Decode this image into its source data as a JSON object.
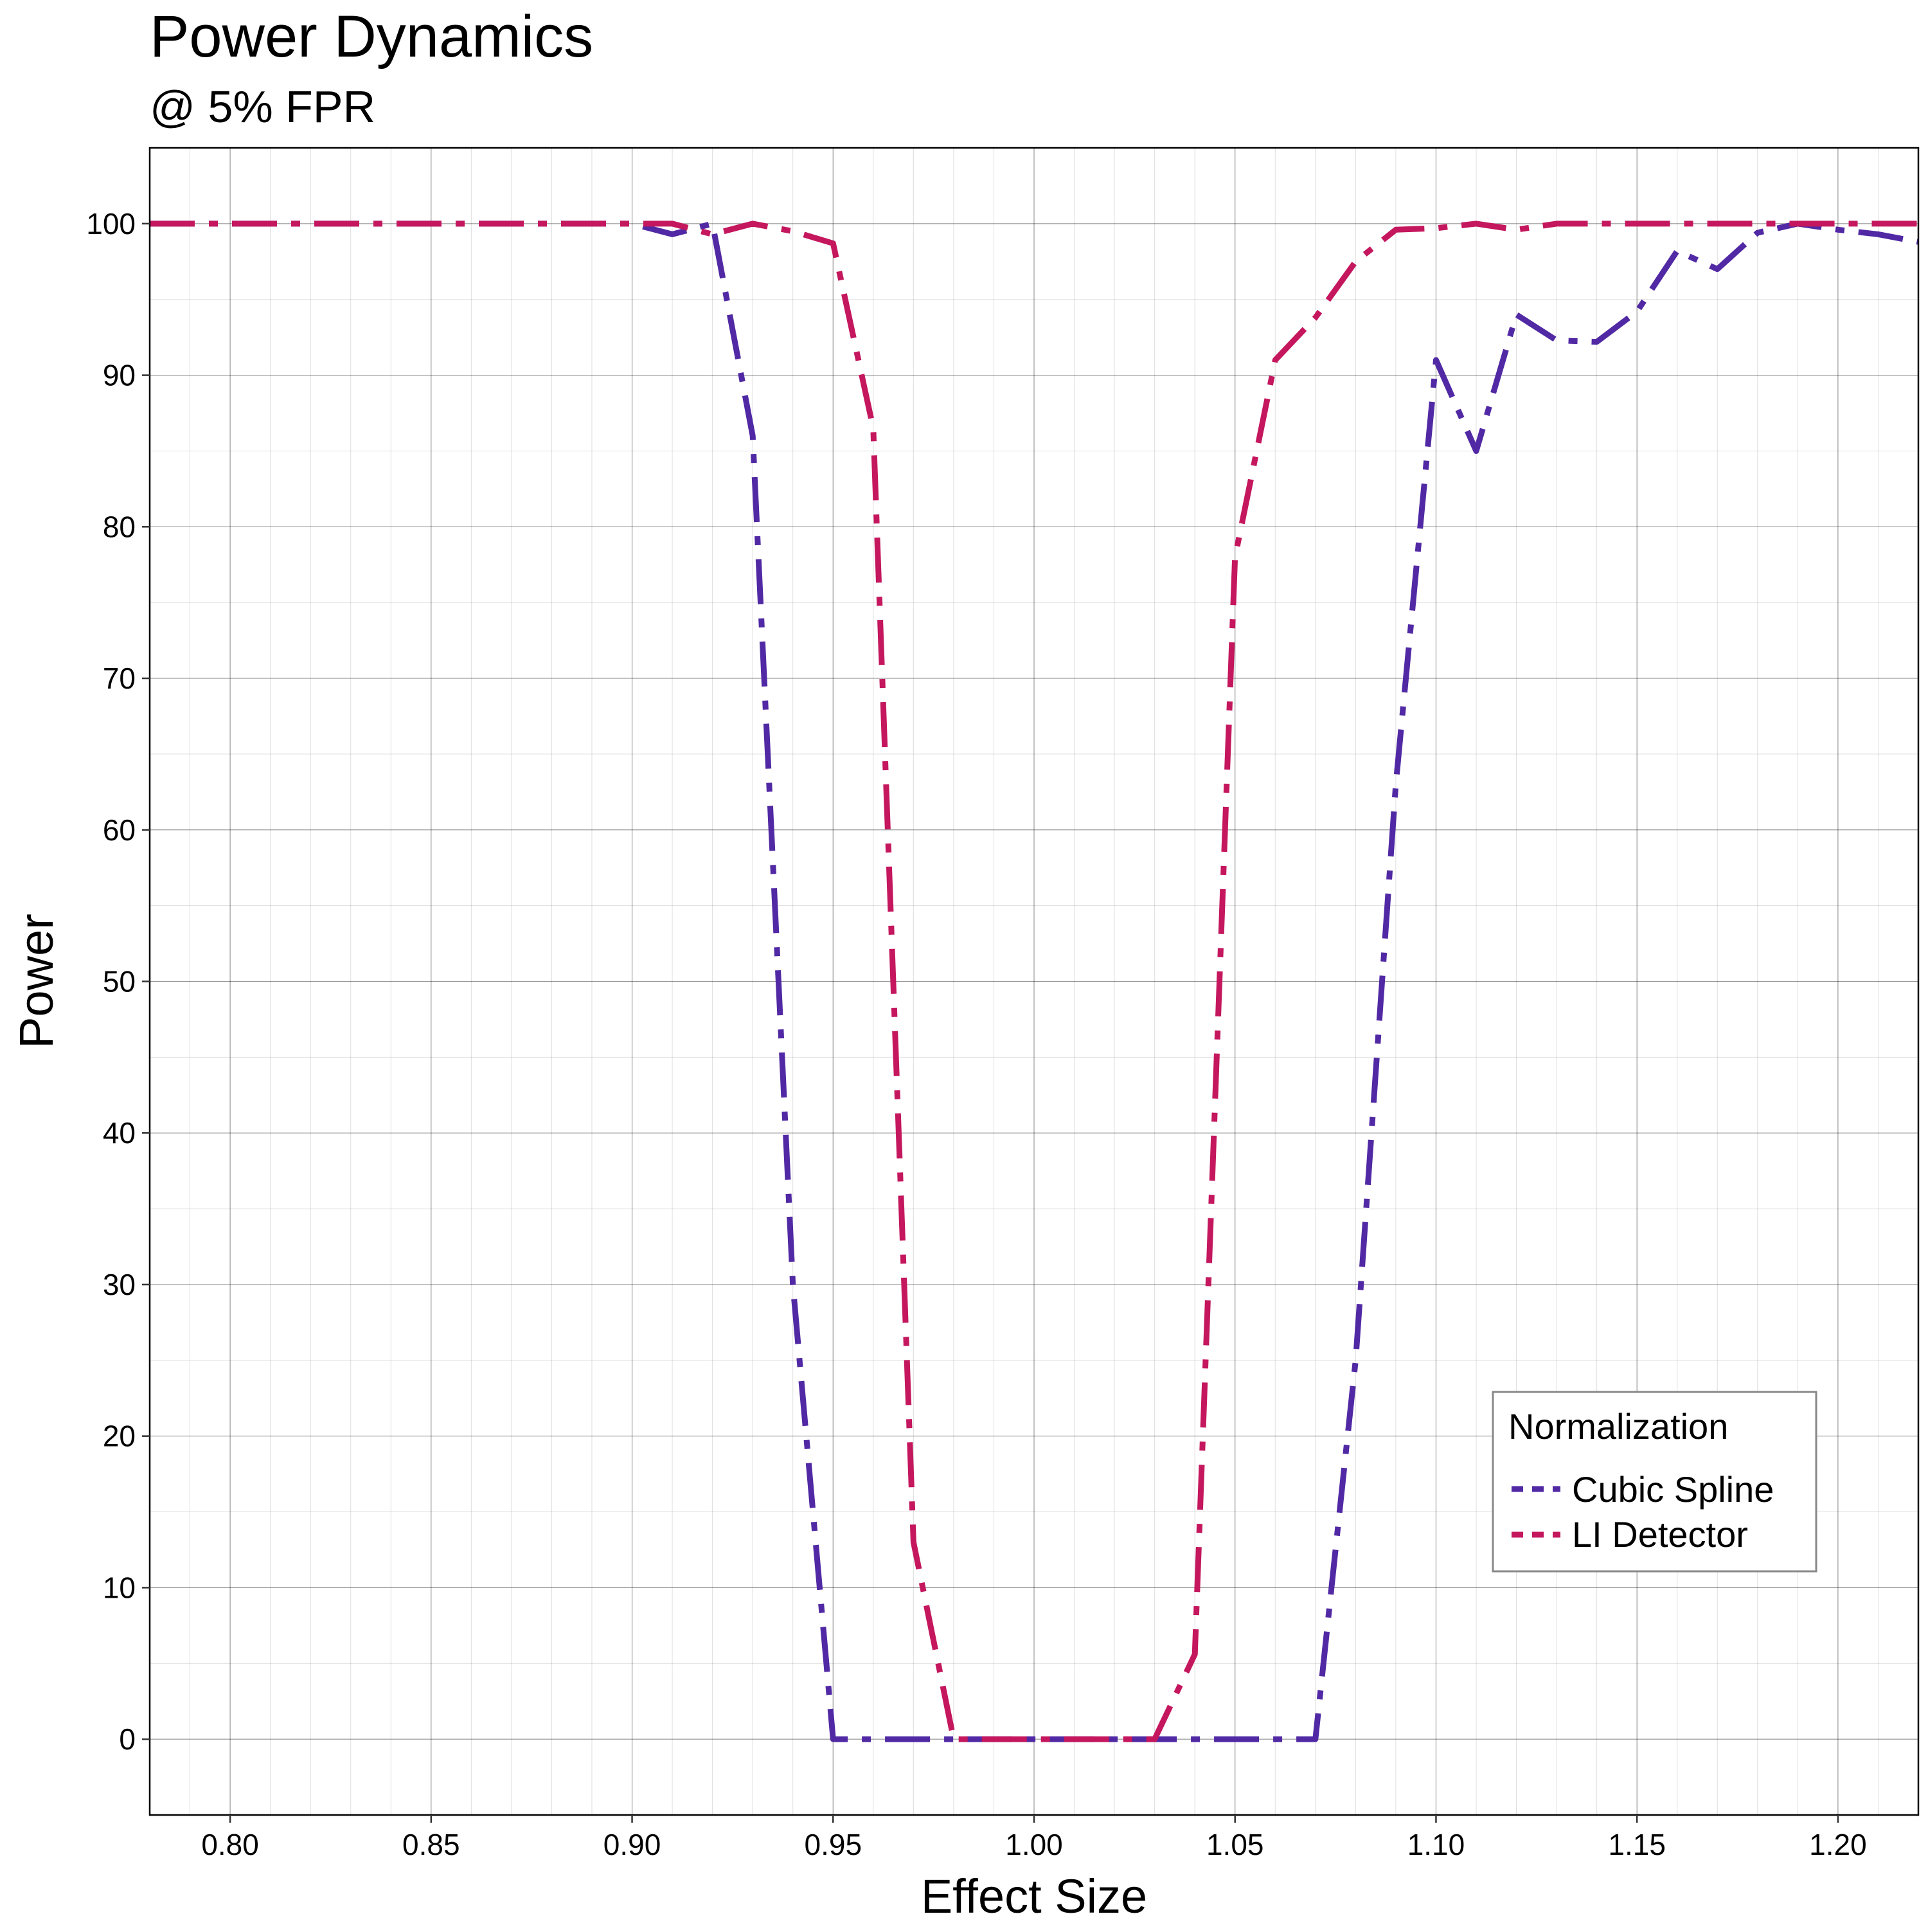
{
  "chart_data": {
    "type": "line",
    "title": "Power Dynamics",
    "subtitle": "@ 5% FPR",
    "xlabel": "Effect Size",
    "ylabel": "Power",
    "xlim": [
      0.78,
      1.22
    ],
    "ylim": [
      -5,
      105
    ],
    "x_ticks": [
      "0.80",
      "0.85",
      "0.90",
      "0.95",
      "1.00",
      "1.05",
      "1.10",
      "1.15",
      "1.20"
    ],
    "y_ticks": [
      "0",
      "10",
      "20",
      "30",
      "40",
      "50",
      "60",
      "70",
      "80",
      "90",
      "100"
    ],
    "x_tick_values": [
      0.8,
      0.85,
      0.9,
      0.95,
      1.0,
      1.05,
      1.1,
      1.15,
      1.2
    ],
    "y_tick_values": [
      0,
      10,
      20,
      30,
      40,
      50,
      60,
      70,
      80,
      90,
      100
    ],
    "grid": true,
    "legend": {
      "title": "Normalization",
      "position": "bottom-right inside"
    },
    "x": [
      0.78,
      0.79,
      0.8,
      0.81,
      0.82,
      0.83,
      0.84,
      0.85,
      0.86,
      0.87,
      0.88,
      0.89,
      0.9,
      0.91,
      0.92,
      0.93,
      0.94,
      0.95,
      0.96,
      0.97,
      0.98,
      0.99,
      1.0,
      1.01,
      1.02,
      1.03,
      1.04,
      1.05,
      1.06,
      1.07,
      1.08,
      1.09,
      1.1,
      1.11,
      1.12,
      1.13,
      1.14,
      1.15,
      1.16,
      1.17,
      1.18,
      1.19,
      1.2,
      1.21,
      1.22
    ],
    "series": [
      {
        "name": "Cubic Spline",
        "color": "#5129A4",
        "dash": "longdash-dot",
        "values": [
          100,
          100,
          100,
          100,
          100,
          100,
          100,
          100,
          100,
          100,
          100,
          100,
          100,
          99.3,
          100,
          86,
          30,
          0,
          0,
          0,
          0,
          0,
          0,
          0,
          0,
          0,
          0,
          0,
          0,
          0,
          25,
          63,
          91,
          85,
          94,
          92.3,
          92.2,
          94.2,
          98.2,
          97,
          99.4,
          100,
          99.6,
          99.3,
          98.8
        ]
      },
      {
        "name": "LI Detector",
        "color": "#C4175E",
        "dash": "longdash-dot",
        "values": [
          100,
          100,
          100,
          100,
          100,
          100,
          100,
          100,
          100,
          100,
          100,
          100,
          100,
          100,
          99.3,
          100,
          99.5,
          98.7,
          86.5,
          13,
          0,
          0,
          0,
          0,
          0,
          0,
          5.6,
          78,
          91,
          93.8,
          97.5,
          99.6,
          99.7,
          100,
          99.6,
          100,
          100,
          100,
          100,
          100,
          100,
          100,
          100,
          100,
          100
        ]
      }
    ]
  }
}
